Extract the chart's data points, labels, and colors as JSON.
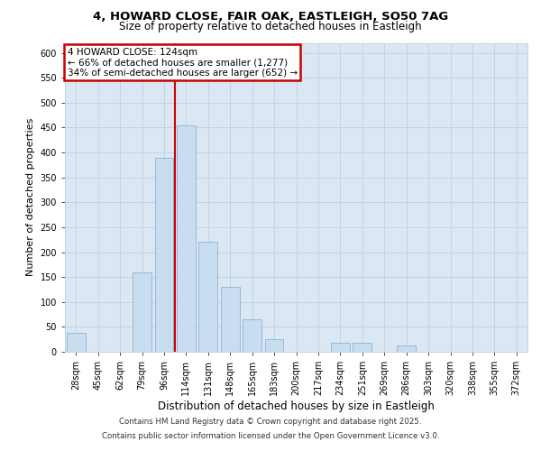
{
  "title_line1": "4, HOWARD CLOSE, FAIR OAK, EASTLEIGH, SO50 7AG",
  "title_line2": "Size of property relative to detached houses in Eastleigh",
  "xlabel": "Distribution of detached houses by size in Eastleigh",
  "ylabel": "Number of detached properties",
  "categories": [
    "28sqm",
    "45sqm",
    "62sqm",
    "79sqm",
    "96sqm",
    "114sqm",
    "131sqm",
    "148sqm",
    "165sqm",
    "183sqm",
    "200sqm",
    "217sqm",
    "234sqm",
    "251sqm",
    "269sqm",
    "286sqm",
    "303sqm",
    "320sqm",
    "338sqm",
    "355sqm",
    "372sqm"
  ],
  "values": [
    38,
    0,
    0,
    160,
    390,
    455,
    220,
    130,
    65,
    25,
    0,
    0,
    18,
    18,
    0,
    12,
    0,
    0,
    0,
    0,
    0
  ],
  "bar_color": "#c8ddf0",
  "bar_edge_color": "#8ab4d4",
  "grid_color": "#c0d0e0",
  "background_color": "#dbe8f4",
  "annotation_text_line1": "4 HOWARD CLOSE: 124sqm",
  "annotation_text_line2": "← 66% of detached houses are smaller (1,277)",
  "annotation_text_line3": "34% of semi-detached houses are larger (652) →",
  "annotation_box_color": "#cc0000",
  "vline_color": "#cc0000",
  "footer_line1": "Contains HM Land Registry data © Crown copyright and database right 2025.",
  "footer_line2": "Contains public sector information licensed under the Open Government Licence v3.0.",
  "ylim": [
    0,
    620
  ],
  "yticks": [
    0,
    50,
    100,
    150,
    200,
    250,
    300,
    350,
    400,
    450,
    500,
    550,
    600
  ],
  "vline_x": 4.5,
  "title1_fontsize": 9.5,
  "title2_fontsize": 8.5,
  "ylabel_fontsize": 8,
  "xlabel_fontsize": 8.5,
  "tick_fontsize": 7,
  "annotation_fontsize": 7.5
}
